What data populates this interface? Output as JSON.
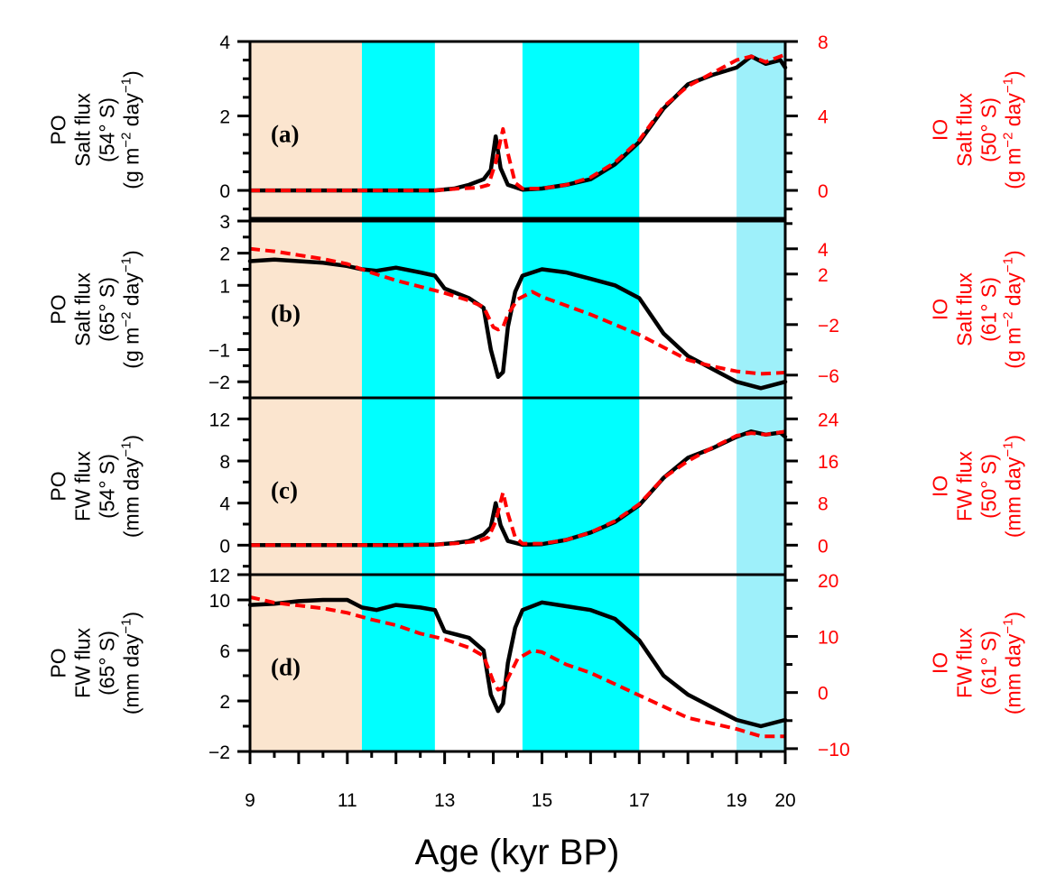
{
  "colors": {
    "black": "#000000",
    "red": "#ff0000",
    "peach": "#fbe5cf",
    "cyan": "#00ffff",
    "lightcyan": "#9ef0fa"
  },
  "chart_data": {
    "type": "line",
    "xlabel": "Age (kyr BP)",
    "xlim": [
      9,
      20
    ],
    "x_tick_labels": [
      {
        "v": 9,
        "t": "9"
      },
      {
        "v": 11,
        "t": "11"
      },
      {
        "v": 13,
        "t": "13"
      },
      {
        "v": 15,
        "t": "15"
      },
      {
        "v": 17,
        "t": "17"
      },
      {
        "v": 19,
        "t": "19"
      },
      {
        "v": 20,
        "t": "20"
      }
    ],
    "shaded_intervals": [
      {
        "from": 9.0,
        "to": 11.3,
        "color": "peach"
      },
      {
        "from": 11.3,
        "to": 12.8,
        "color": "cyan"
      },
      {
        "from": 14.6,
        "to": 17.0,
        "color": "cyan"
      },
      {
        "from": 19.0,
        "to": 20.0,
        "color": "lightcyan"
      }
    ],
    "panels": [
      {
        "label": "(a)",
        "left_axis": {
          "lines": [
            "PO",
            "Salt flux",
            "(54° S)"
          ],
          "unit_pre": "(g m",
          "sup1": "−2",
          "unit_mid": " day",
          "sup2": "−1",
          "unit_post": ")",
          "range": [
            -0.75,
            4
          ],
          "ticks": [
            0,
            2,
            4
          ]
        },
        "right_axis": {
          "lines": [
            "IO",
            "Salt flux",
            "(50° S)"
          ],
          "unit_pre": "(g m",
          "sup1": "−2",
          "unit_mid": " day",
          "sup2": "−1",
          "unit_post": ")",
          "range": [
            -1.5,
            8
          ],
          "ticks": [
            0,
            4,
            8
          ]
        },
        "series": [
          {
            "name": "PO (black)",
            "color": "black",
            "x": [
              9,
              10,
              11,
              12,
              12.8,
              13.2,
              13.5,
              13.8,
              13.95,
              14.05,
              14.15,
              14.3,
              14.6,
              15,
              15.5,
              16,
              16.5,
              17,
              17.5,
              18,
              18.5,
              19,
              19.3,
              19.6,
              19.9,
              20
            ],
            "y": [
              0,
              0,
              0,
              0,
              0,
              0.05,
              0.15,
              0.3,
              0.55,
              1.45,
              0.6,
              0.15,
              0.02,
              0.05,
              0.15,
              0.3,
              0.7,
              1.3,
              2.2,
              2.85,
              3.1,
              3.3,
              3.6,
              3.4,
              3.5,
              3.3
            ]
          },
          {
            "name": "IO (red, dashed)",
            "color": "red",
            "x": [
              9,
              10,
              11,
              12,
              12.8,
              13.3,
              13.7,
              13.9,
              14.05,
              14.2,
              14.3,
              14.45,
              14.6,
              15,
              15.5,
              16,
              16.5,
              17,
              17.5,
              18,
              18.5,
              19,
              19.3,
              19.6,
              20
            ],
            "y": [
              0,
              0,
              0,
              0,
              0,
              0.1,
              0.15,
              0.3,
              1.5,
              3.3,
              2.0,
              0.4,
              0.1,
              0.1,
              0.3,
              0.7,
              1.5,
              2.7,
              4.5,
              5.6,
              6.3,
              7.0,
              7.2,
              6.9,
              7.3
            ]
          }
        ]
      },
      {
        "label": "(b)",
        "left_axis": {
          "lines": [
            "PO",
            "Salt flux",
            "(65° S)"
          ],
          "unit_pre": "(g m",
          "sup1": "−2",
          "unit_mid": " day",
          "sup2": "−1",
          "unit_post": ")",
          "range": [
            -2.5,
            3
          ],
          "ticks": [
            -2,
            -1,
            1,
            2,
            3
          ]
        },
        "right_axis": {
          "lines": [
            "IO",
            "Salt flux",
            "(61° S)"
          ],
          "unit_pre": "(g m",
          "sup1": "−2",
          "unit_mid": " day",
          "sup2": "−1",
          "unit_post": ")",
          "range": [
            -7.8,
            6.2
          ],
          "ticks": [
            -6,
            -2,
            2,
            4
          ]
        },
        "series": [
          {
            "name": "PO (black)",
            "color": "black",
            "x": [
              9,
              9.5,
              10,
              10.5,
              11,
              11.3,
              11.6,
              12,
              12.5,
              12.8,
              13,
              13.5,
              13.8,
              13.95,
              14.1,
              14.2,
              14.3,
              14.45,
              14.6,
              15,
              15.5,
              16,
              16.5,
              17,
              17.5,
              18,
              18.5,
              19,
              19.5,
              20
            ],
            "y": [
              1.75,
              1.8,
              1.75,
              1.7,
              1.6,
              1.5,
              1.45,
              1.55,
              1.4,
              1.3,
              0.9,
              0.6,
              0.3,
              -1.0,
              -1.85,
              -1.7,
              -0.3,
              0.8,
              1.3,
              1.5,
              1.4,
              1.2,
              1.0,
              0.6,
              -0.5,
              -1.2,
              -1.6,
              -2.0,
              -2.2,
              -2.0
            ]
          },
          {
            "name": "IO (red, dashed)",
            "color": "red",
            "x": [
              9,
              9.5,
              10,
              10.5,
              11,
              11.5,
              12,
              12.5,
              13,
              13.5,
              13.8,
              14.0,
              14.1,
              14.2,
              14.3,
              14.5,
              14.8,
              15,
              15.5,
              16,
              16.5,
              17,
              17.5,
              18,
              18.5,
              19,
              19.5,
              20
            ],
            "y": [
              4.0,
              3.8,
              3.5,
              3.2,
              2.8,
              2.1,
              1.5,
              1.0,
              0.5,
              -0.1,
              -0.6,
              -2.2,
              -2.4,
              -2.2,
              -1.2,
              0,
              0.6,
              0.2,
              -0.5,
              -1.2,
              -2.0,
              -2.8,
              -3.8,
              -4.8,
              -5.3,
              -5.7,
              -5.9,
              -5.8
            ]
          }
        ]
      },
      {
        "label": "(c)",
        "left_axis": {
          "lines": [
            "PO",
            "FW flux",
            "(54° S)"
          ],
          "unit_pre": "(mm day",
          "sup1": "",
          "unit_mid": "",
          "sup2": "−1",
          "unit_post": ")",
          "range": [
            -2.8,
            14
          ],
          "ticks": [
            0,
            4,
            8,
            12
          ]
        },
        "right_axis": {
          "lines": [
            "IO",
            "FW flux",
            "(50° S)"
          ],
          "unit_pre": "(mm day",
          "sup1": "",
          "unit_mid": "",
          "sup2": "−1",
          "unit_post": ")",
          "range": [
            -5.6,
            28
          ],
          "ticks": [
            0,
            8,
            16,
            24
          ]
        },
        "series": [
          {
            "name": "PO (black)",
            "color": "black",
            "x": [
              9,
              10,
              11,
              12,
              12.8,
              13.2,
              13.5,
              13.8,
              13.95,
              14.05,
              14.15,
              14.3,
              14.6,
              15,
              15.5,
              16,
              16.5,
              17,
              17.5,
              18,
              18.5,
              19,
              19.3,
              19.6,
              19.9,
              20
            ],
            "y": [
              0,
              0,
              0,
              0,
              0.05,
              0.2,
              0.4,
              1.0,
              1.7,
              4.0,
              1.9,
              0.4,
              0.05,
              0.1,
              0.5,
              1.2,
              2.2,
              3.8,
              6.4,
              8.3,
              9.2,
              10.3,
              10.8,
              10.5,
              10.7,
              10.3
            ]
          },
          {
            "name": "IO (red, dashed)",
            "color": "red",
            "x": [
              9,
              10,
              11,
              12,
              12.8,
              13.3,
              13.7,
              13.9,
              14.05,
              14.2,
              14.3,
              14.45,
              14.6,
              15,
              15.5,
              16,
              16.5,
              17,
              17.5,
              18,
              18.5,
              19,
              19.3,
              19.6,
              20
            ],
            "y": [
              0,
              0,
              0,
              0,
              0.1,
              0.4,
              0.8,
              1.5,
              4.5,
              10.0,
              6.0,
              1.5,
              0.3,
              0.3,
              1.0,
              2.4,
              4.6,
              7.8,
              12.8,
              16.0,
              18.5,
              20.8,
              21.3,
              21.0,
              21.6
            ]
          }
        ]
      },
      {
        "label": "(d)",
        "left_axis": {
          "lines": [
            "PO",
            "FW flux",
            "(65° S)"
          ],
          "unit_pre": "(mm day",
          "sup1": "",
          "unit_mid": "",
          "sup2": "−1",
          "unit_post": ")",
          "range": [
            -2,
            12
          ],
          "ticks": [
            -2,
            2,
            6,
            10,
            12
          ]
        },
        "right_axis": {
          "lines": [
            "IO",
            "FW flux",
            "(61° S)"
          ],
          "unit_pre": "(mm day",
          "sup1": "",
          "unit_mid": "",
          "sup2": "−1",
          "unit_post": ")",
          "range": [
            -10.5,
            21
          ],
          "ticks": [
            -10,
            0,
            10,
            20
          ]
        },
        "series": [
          {
            "name": "PO (black)",
            "color": "black",
            "x": [
              9,
              9.5,
              10,
              10.5,
              11,
              11.3,
              11.6,
              12,
              12.5,
              12.8,
              13,
              13.5,
              13.8,
              13.95,
              14.1,
              14.2,
              14.3,
              14.45,
              14.6,
              15,
              15.5,
              16,
              16.5,
              17,
              17.5,
              18,
              18.5,
              19,
              19.5,
              20
            ],
            "y": [
              9.6,
              9.7,
              9.9,
              10.0,
              10.0,
              9.4,
              9.2,
              9.6,
              9.4,
              9.2,
              7.5,
              7.0,
              6.0,
              2.5,
              1.2,
              1.8,
              5.0,
              7.8,
              9.2,
              9.8,
              9.5,
              9.2,
              8.5,
              6.8,
              4.0,
              2.5,
              1.5,
              0.5,
              0.0,
              0.5
            ]
          },
          {
            "name": "IO (red, dashed)",
            "color": "red",
            "x": [
              9,
              9.5,
              10,
              10.5,
              11,
              11.5,
              12,
              12.5,
              13,
              13.5,
              13.8,
              14.0,
              14.1,
              14.2,
              14.3,
              14.5,
              14.8,
              15,
              15.5,
              16,
              16.5,
              17,
              17.5,
              18,
              18.5,
              19,
              19.5,
              20
            ],
            "y": [
              17.0,
              16.0,
              15.5,
              15.0,
              14.2,
              13.0,
              12.0,
              10.5,
              9.5,
              8.0,
              6.5,
              2.0,
              0.5,
              0.8,
              2.5,
              6.0,
              7.5,
              7.2,
              5.0,
              3.5,
              1.5,
              -0.5,
              -2.5,
              -4.5,
              -5.5,
              -6.5,
              -7.8,
              -7.8
            ]
          }
        ]
      }
    ]
  }
}
